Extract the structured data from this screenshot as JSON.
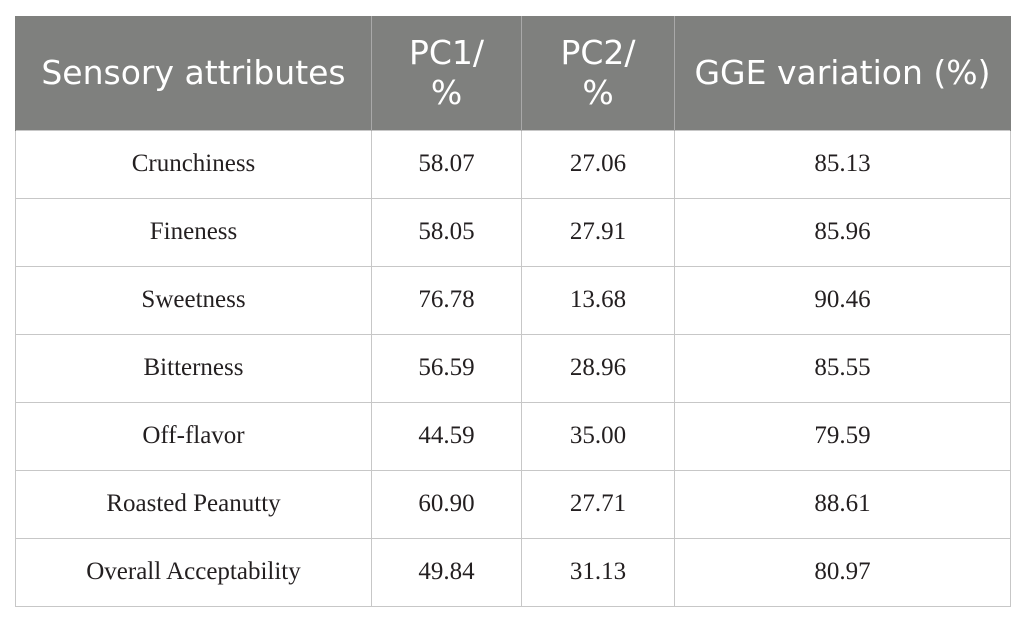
{
  "table": {
    "headers": [
      "Sensory attributes",
      "PC1/\n%",
      "PC2/\n%",
      "GGE variation (%)"
    ],
    "rows": [
      [
        "Crunchiness",
        "58.07",
        "27.06",
        "85.13"
      ],
      [
        "Fineness",
        "58.05",
        "27.91",
        "85.96"
      ],
      [
        "Sweetness",
        "76.78",
        "13.68",
        "90.46"
      ],
      [
        "Bitterness",
        "56.59",
        "28.96",
        "85.55"
      ],
      [
        "Off-flavor",
        "44.59",
        "35.00",
        "79.59"
      ],
      [
        "Roasted Peanutty",
        "60.90",
        "27.71",
        "88.61"
      ],
      [
        "Overall Acceptability",
        "49.84",
        "31.13",
        "80.97"
      ]
    ]
  },
  "colors": {
    "header_bg": "#7f807e",
    "header_text": "#ffffff",
    "cell_border": "#c7c7c7",
    "body_text": "#231f20"
  }
}
